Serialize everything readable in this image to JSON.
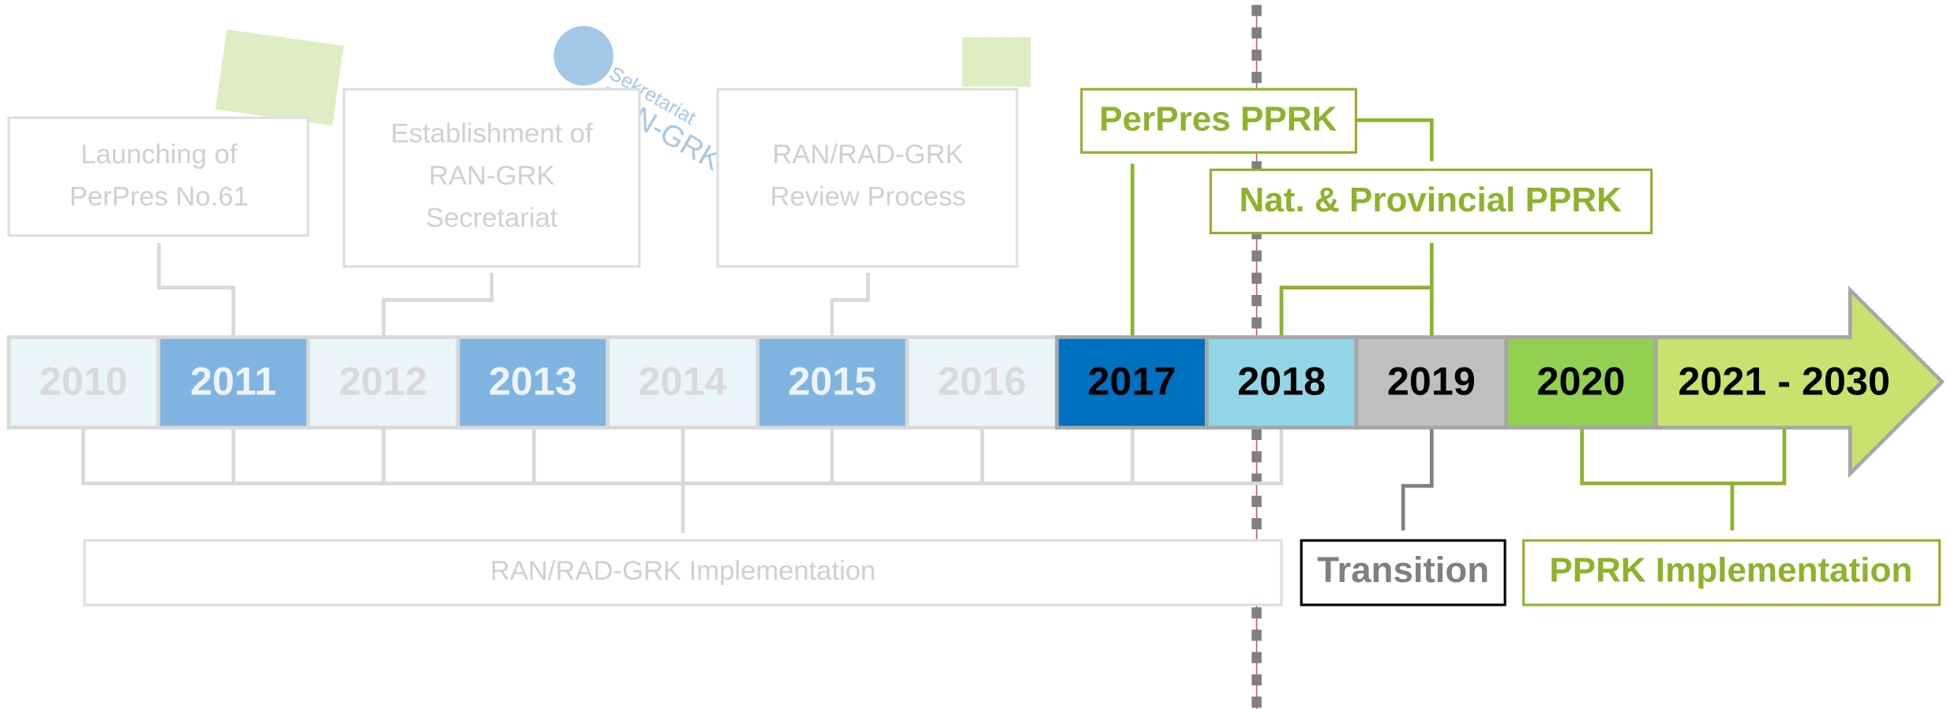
{
  "timeline": {
    "years": [
      "2010",
      "2011",
      "2012",
      "2013",
      "2014",
      "2015",
      "2016",
      "2017",
      "2018",
      "2019",
      "2020",
      "2021 - 2030"
    ]
  },
  "callouts": {
    "launching": [
      "Launching of",
      "PerPres No.61"
    ],
    "establishment": [
      "Establishment of",
      "RAN-GRK",
      "Secretariat"
    ],
    "review": [
      "RAN/RAD-GRK",
      "Review Process"
    ],
    "perpres_pprk": "PerPres PPRK",
    "nat_prov_pprk": "Nat. & Provincial PPRK",
    "ran_implementation": "RAN/RAD-GRK Implementation",
    "transition": "Transition",
    "pprk_implementation": "PPRK Implementation"
  },
  "logo": {
    "line1": "Sekretariat",
    "line2": "RAN-GRK"
  }
}
